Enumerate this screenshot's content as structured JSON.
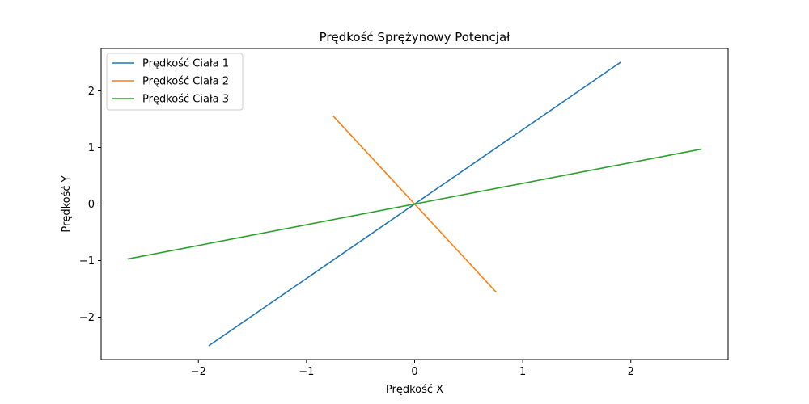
{
  "chart_data": {
    "type": "line",
    "title": "Prędkość Sprężynowy Potencjał",
    "xlabel": "Prędkość X",
    "ylabel": "Prędkość Y",
    "xlim": [
      -2.9,
      2.9
    ],
    "ylim": [
      -2.75,
      2.75
    ],
    "xticks": [
      -2,
      -1,
      0,
      1,
      2
    ],
    "yticks": [
      -2,
      -1,
      0,
      1,
      2
    ],
    "xtick_labels": [
      "−2",
      "−1",
      "0",
      "1",
      "2"
    ],
    "ytick_labels": [
      "−2",
      "−1",
      "0",
      "1",
      "2"
    ],
    "grid": false,
    "legend_position": "top-left",
    "series": [
      {
        "name": "Prędkość Ciała 1",
        "color": "#1f77b4",
        "x": [
          -1.9,
          0,
          1.9
        ],
        "y": [
          -2.5,
          0,
          2.5
        ]
      },
      {
        "name": "Prędkość Ciała 2",
        "color": "#ff7f0e",
        "x": [
          -0.75,
          0,
          0.75
        ],
        "y": [
          1.55,
          0,
          -1.55
        ]
      },
      {
        "name": "Prędkość Ciała 3",
        "color": "#2ca02c",
        "x": [
          -2.65,
          0,
          2.65
        ],
        "y": [
          -0.97,
          0,
          0.97
        ]
      }
    ]
  }
}
